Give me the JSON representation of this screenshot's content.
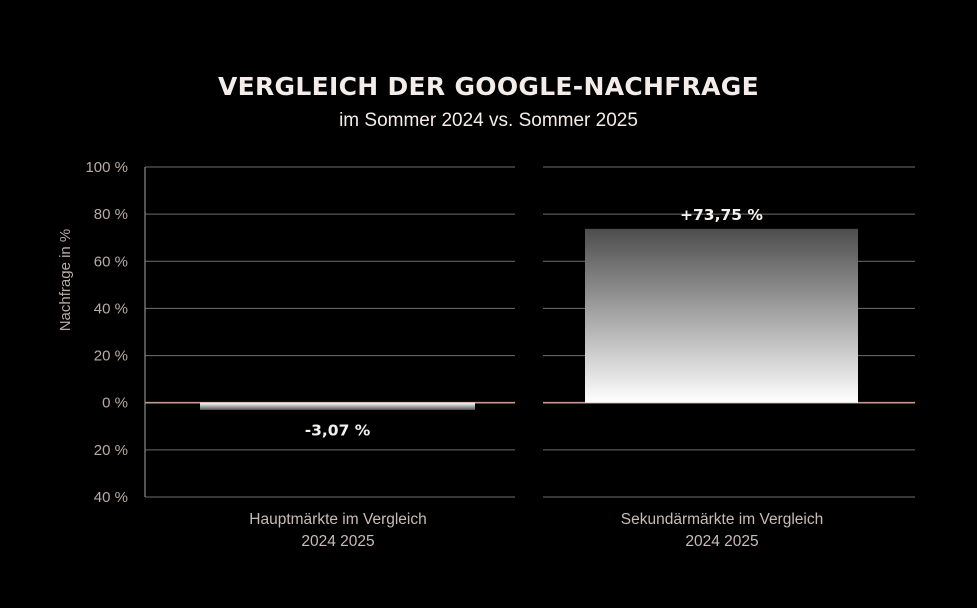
{
  "header": {
    "title": "VERGLEICH DER GOOGLE-NACHFRAGE",
    "subtitle": "im Sommer 2024 vs. Sommer 2025"
  },
  "chart_data": {
    "type": "bar",
    "title": "VERGLEICH DER GOOGLE-NACHFRAGE",
    "subtitle": "im Sommer 2024 vs. Sommer 2025",
    "ylabel": "Nachfrage in %",
    "ylim": [
      -40,
      100
    ],
    "yticks": [
      100,
      80,
      60,
      40,
      20,
      0,
      -20,
      -40
    ],
    "ytick_labels": [
      "100 %",
      "80 %",
      "60 %",
      "40 %",
      "20 %",
      "0 %",
      "20 %",
      "40 %"
    ],
    "grid": true,
    "categories": [
      "Hauptmärkte im Vergleich",
      "Sekundärmärkte im Vergleich"
    ],
    "category_sublabels": [
      "2024   2025",
      "2024   2025"
    ],
    "values": [
      -3.07,
      73.75
    ],
    "value_labels": [
      "-3,07 %",
      "+73,75 %"
    ],
    "colors": {
      "background": "#000000",
      "grid": "#6e6e6e",
      "zero_line": "#c79a8c",
      "bar_top": "#4d4d4d",
      "bar_bottom": "#ffffff",
      "neg_bar_top": "#5a5a5a",
      "neg_bar_bottom": "#ffffff"
    }
  }
}
